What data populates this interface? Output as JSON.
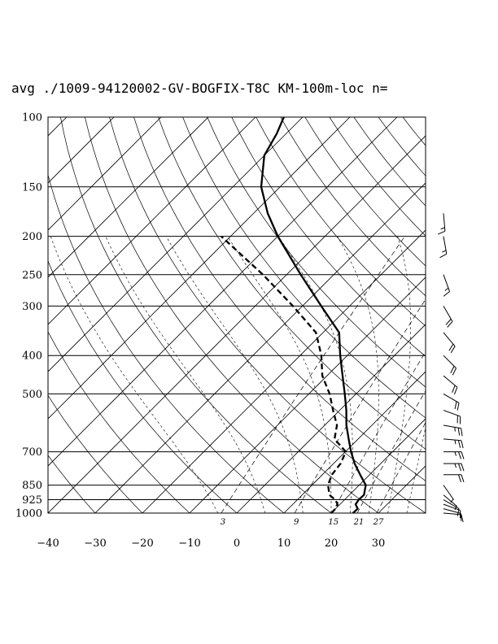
{
  "chart_data": {
    "type": "skew-t",
    "title": "avg ./1009-94120002-GV-BOGFIX-T8C KM-100m-loc n=",
    "pressure_levels": [
      100,
      150,
      200,
      250,
      300,
      400,
      500,
      700,
      850,
      925,
      1000
    ],
    "pressure_labels": [
      "100",
      "150",
      "200",
      "250",
      "300",
      "400",
      "500",
      "700",
      "850",
      "925",
      "1000"
    ],
    "temperature_ticks": [
      -40,
      -30,
      -20,
      -10,
      0,
      10,
      20,
      30
    ],
    "temperature_labels": [
      "−40",
      "−30",
      "−20",
      "−10",
      "0",
      "10",
      "20",
      "30"
    ],
    "xlim": [
      -40,
      40
    ],
    "ylim": [
      1000,
      100
    ],
    "mixing_ratio_labels": [
      "3",
      "9",
      "15",
      "21",
      "27"
    ],
    "temperature_profile": [
      {
        "p": 1000,
        "t": 24.6
      },
      {
        "p": 975,
        "t": 24.7
      },
      {
        "p": 950,
        "t": 23.3
      },
      {
        "p": 925,
        "t": 23.0
      },
      {
        "p": 900,
        "t": 23.1
      },
      {
        "p": 850,
        "t": 21.4
      },
      {
        "p": 800,
        "t": 18.0
      },
      {
        "p": 750,
        "t": 14.5
      },
      {
        "p": 700,
        "t": 11.2
      },
      {
        "p": 650,
        "t": 8.0
      },
      {
        "p": 600,
        "t": 4.6
      },
      {
        "p": 550,
        "t": 1.4
      },
      {
        "p": 500,
        "t": -2.4
      },
      {
        "p": 450,
        "t": -6.7
      },
      {
        "p": 400,
        "t": -11.5
      },
      {
        "p": 350,
        "t": -16.6
      },
      {
        "p": 300,
        "t": -26.0
      },
      {
        "p": 250,
        "t": -37.0
      },
      {
        "p": 200,
        "t": -50.0
      },
      {
        "p": 175,
        "t": -57.0
      },
      {
        "p": 150,
        "t": -64.0
      },
      {
        "p": 125,
        "t": -70.0
      },
      {
        "p": 110,
        "t": -72.0
      },
      {
        "p": 100,
        "t": -74.0
      }
    ],
    "dewpoint_profile": [
      {
        "p": 1000,
        "t": 20.0
      },
      {
        "p": 975,
        "t": 20.0
      },
      {
        "p": 950,
        "t": 19.5
      },
      {
        "p": 925,
        "t": 18.0
      },
      {
        "p": 900,
        "t": 15.8
      },
      {
        "p": 850,
        "t": 13.4
      },
      {
        "p": 800,
        "t": 12.0
      },
      {
        "p": 750,
        "t": 11.5
      },
      {
        "p": 700,
        "t": 10.1
      },
      {
        "p": 650,
        "t": 5.0
      },
      {
        "p": 600,
        "t": 2.6
      },
      {
        "p": 550,
        "t": -1.4
      },
      {
        "p": 500,
        "t": -5.6
      },
      {
        "p": 450,
        "t": -11.0
      },
      {
        "p": 400,
        "t": -15.5
      },
      {
        "p": 350,
        "t": -21.5
      },
      {
        "p": 300,
        "t": -32.0
      },
      {
        "p": 250,
        "t": -45.0
      },
      {
        "p": 200,
        "t": -62.0
      }
    ],
    "wind_barbs": [
      {
        "p": 1000,
        "dir": 95,
        "spd": 10
      },
      {
        "p": 975,
        "dir": 105,
        "spd": 10
      },
      {
        "p": 950,
        "dir": 110,
        "spd": 10
      },
      {
        "p": 925,
        "dir": 120,
        "spd": 10
      },
      {
        "p": 900,
        "dir": 130,
        "spd": 5
      },
      {
        "p": 850,
        "dir": 145,
        "spd": 5
      },
      {
        "p": 800,
        "dir": 90,
        "spd": 20
      },
      {
        "p": 750,
        "dir": 90,
        "spd": 25
      },
      {
        "p": 700,
        "dir": 90,
        "spd": 25
      },
      {
        "p": 650,
        "dir": 95,
        "spd": 25
      },
      {
        "p": 600,
        "dir": 100,
        "spd": 25
      },
      {
        "p": 550,
        "dir": 110,
        "spd": 20
      },
      {
        "p": 500,
        "dir": 120,
        "spd": 20
      },
      {
        "p": 450,
        "dir": 130,
        "spd": 20
      },
      {
        "p": 400,
        "dir": 135,
        "spd": 20
      },
      {
        "p": 350,
        "dir": 140,
        "spd": 20
      },
      {
        "p": 300,
        "dir": 150,
        "spd": 20
      },
      {
        "p": 250,
        "dir": 160,
        "spd": 15
      },
      {
        "p": 200,
        "dir": 170,
        "spd": 15
      },
      {
        "p": 175,
        "dir": 175,
        "spd": 15
      }
    ]
  }
}
